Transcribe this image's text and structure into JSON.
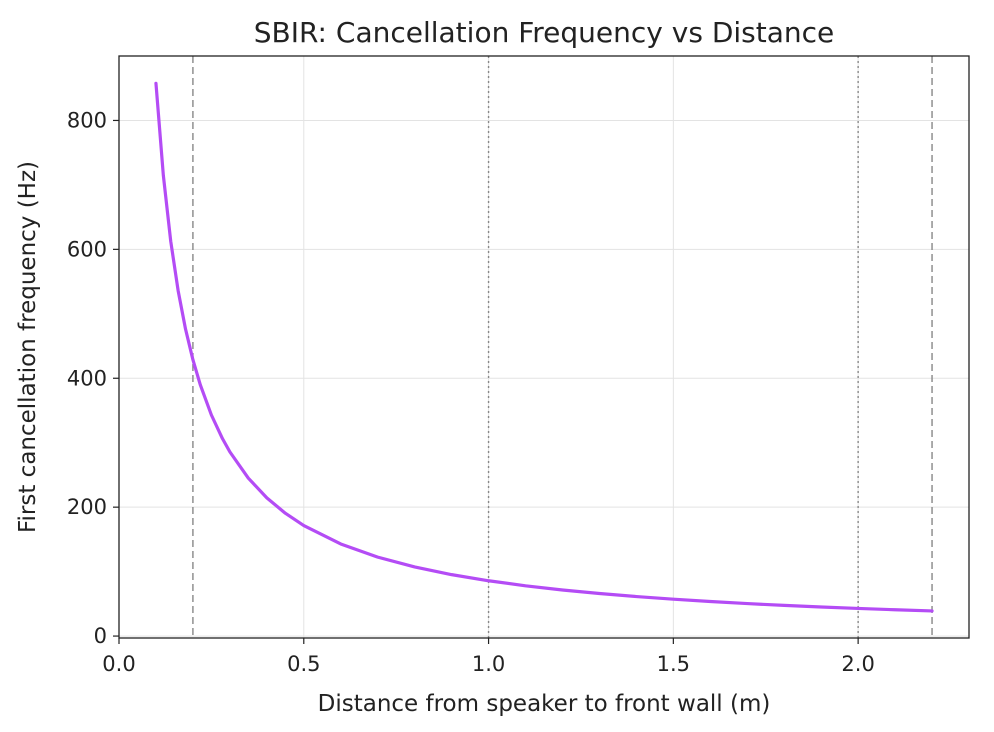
{
  "chart_data": {
    "type": "line",
    "title": "SBIR: Cancellation Frequency vs Distance",
    "xlabel": "Distance from speaker to front wall (m)",
    "ylabel": "First cancellation frequency (Hz)",
    "xlim": [
      0.0,
      2.3
    ],
    "ylim": [
      -3,
      900
    ],
    "xticks": [
      0.0,
      0.5,
      1.0,
      1.5,
      2.0
    ],
    "xtick_labels": [
      "0.0",
      "0.5",
      "1.0",
      "1.5",
      "2.0"
    ],
    "yticks": [
      0,
      200,
      400,
      600,
      800
    ],
    "ytick_labels": [
      "0",
      "200",
      "400",
      "600",
      "800"
    ],
    "grid": true,
    "legend": "none",
    "series": [
      {
        "color": "#b44cf5",
        "x": [
          0.1,
          0.12,
          0.14,
          0.16,
          0.18,
          0.2,
          0.22,
          0.25,
          0.28,
          0.3,
          0.35,
          0.4,
          0.45,
          0.5,
          0.6,
          0.7,
          0.8,
          0.9,
          1.0,
          1.1,
          1.2,
          1.3,
          1.4,
          1.5,
          1.6,
          1.7,
          1.8,
          1.9,
          2.0,
          2.1,
          2.2
        ],
        "y": [
          857.5,
          714.6,
          612.5,
          535.9,
          476.4,
          428.8,
          389.8,
          343.0,
          306.3,
          285.8,
          245.0,
          214.4,
          190.6,
          171.5,
          142.9,
          122.5,
          107.2,
          95.3,
          85.8,
          78.0,
          71.5,
          66.0,
          61.3,
          57.2,
          53.6,
          50.4,
          47.6,
          45.1,
          42.9,
          40.8,
          39.0
        ]
      }
    ],
    "vlines": [
      {
        "x": 0.2,
        "style": "dashed",
        "color": "#888888"
      },
      {
        "x": 1.0,
        "style": "dotted",
        "color": "#888888"
      },
      {
        "x": 2.0,
        "style": "dotted",
        "color": "#888888"
      },
      {
        "x": 2.2,
        "style": "dashed",
        "color": "#888888"
      }
    ]
  }
}
